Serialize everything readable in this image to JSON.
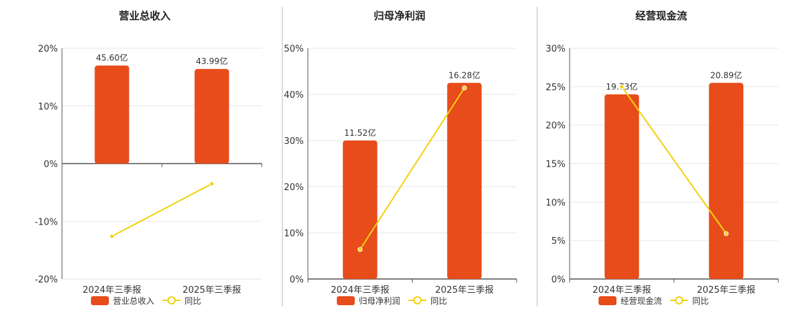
{
  "legend_line_label": "同比",
  "colors": {
    "bar": "#e84c1a",
    "line": "#f2d10f",
    "axis": "#555555",
    "grid": "#e6e6e6",
    "divider": "#bbbbbb"
  },
  "chart_data": [
    {
      "type": "bar",
      "title": "营业总收入",
      "categories": [
        "2024年三季报",
        "2025年三季报"
      ],
      "series": [
        {
          "name": "营业总收入",
          "kind": "bar",
          "values": [
            17,
            16.4
          ],
          "labels": [
            "45.60亿",
            "43.99亿"
          ]
        },
        {
          "name": "同比",
          "kind": "line",
          "values": [
            -12.6,
            -3.5
          ]
        }
      ],
      "ylim": [
        -20,
        20
      ],
      "yticks": [
        -20,
        -10,
        0,
        10,
        20
      ],
      "ytick_labels": [
        "-20%",
        "-10%",
        "0%",
        "10%",
        "20%"
      ],
      "grid": true,
      "legend": "bottom"
    },
    {
      "type": "bar",
      "title": "归母净利润",
      "categories": [
        "2024年三季报",
        "2025年三季报"
      ],
      "series": [
        {
          "name": "归母净利润",
          "kind": "bar",
          "values": [
            30,
            42.5
          ],
          "labels": [
            "11.52亿",
            "16.28亿"
          ]
        },
        {
          "name": "同比",
          "kind": "line",
          "values": [
            6.4,
            41.4
          ]
        }
      ],
      "ylim": [
        0,
        50
      ],
      "yticks": [
        0,
        10,
        20,
        30,
        40,
        50
      ],
      "ytick_labels": [
        "0%",
        "10%",
        "20%",
        "30%",
        "40%",
        "50%"
      ],
      "grid": true,
      "legend": "bottom"
    },
    {
      "type": "bar",
      "title": "经营现金流",
      "categories": [
        "2024年三季报",
        "2025年三季报"
      ],
      "series": [
        {
          "name": "经营现金流",
          "kind": "bar",
          "values": [
            24,
            25.5
          ],
          "labels": [
            "19.73亿",
            "20.89亿"
          ]
        },
        {
          "name": "同比",
          "kind": "line",
          "values": [
            25,
            5.9
          ]
        }
      ],
      "ylim": [
        0,
        30
      ],
      "yticks": [
        0,
        5,
        10,
        15,
        20,
        25,
        30
      ],
      "ytick_labels": [
        "0%",
        "5%",
        "10%",
        "15%",
        "20%",
        "25%",
        "30%"
      ],
      "grid": true,
      "legend": "bottom"
    }
  ]
}
